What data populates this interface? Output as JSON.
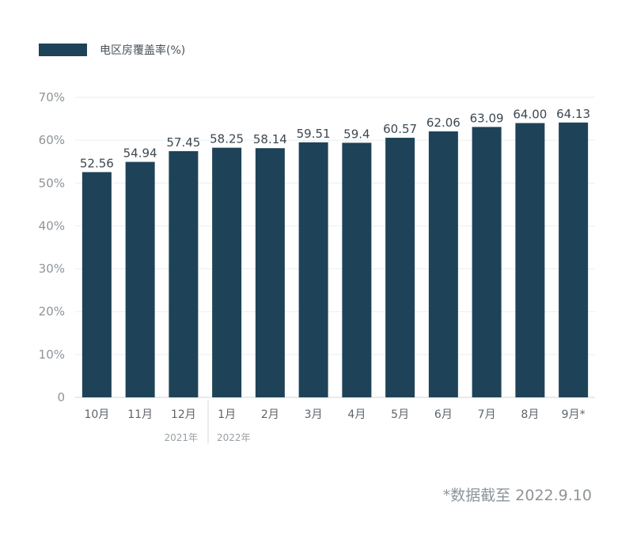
{
  "legend": {
    "label": "电区房覆盖率(%)",
    "color": "#1e4358"
  },
  "footnote": "*数据截至 2022.9.10",
  "year_labels": [
    "2021年",
    "2022年"
  ],
  "chart_data": {
    "type": "bar",
    "categories": [
      "10月",
      "11月",
      "12月",
      "1月",
      "2月",
      "3月",
      "4月",
      "5月",
      "6月",
      "7月",
      "8月",
      "9月*"
    ],
    "value_labels": [
      "52.56",
      "54.94",
      "57.45",
      "58.25",
      "58.14",
      "59.51",
      "59.4",
      "60.57",
      "62.06",
      "63.09",
      "64.00",
      "64.13"
    ],
    "series": [
      {
        "name": "电区房覆盖率(%)",
        "values": [
          52.56,
          54.94,
          57.45,
          58.25,
          58.14,
          59.51,
          59.4,
          60.57,
          62.06,
          63.09,
          64.0,
          64.13
        ]
      }
    ],
    "ylim": [
      0,
      70
    ],
    "yticks": [
      0,
      10,
      20,
      30,
      40,
      50,
      60,
      70
    ],
    "ytick_labels": [
      "0",
      "10%",
      "20%",
      "30%",
      "40%",
      "50%",
      "60%",
      "70%"
    ],
    "grid": true,
    "bar_color": "#1e4358",
    "legend_position": "top-left"
  }
}
